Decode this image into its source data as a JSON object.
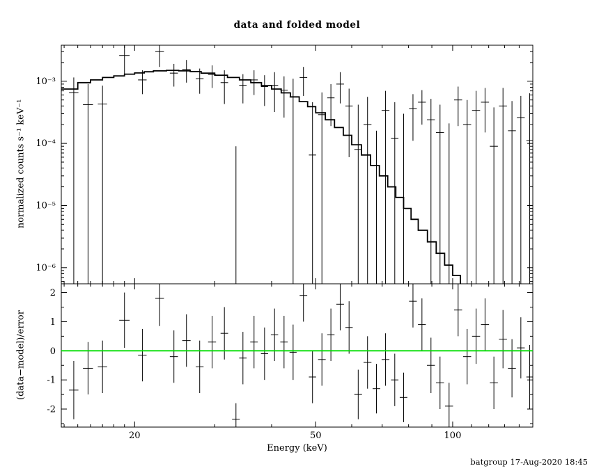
{
  "figure": {
    "title": "data and folded model",
    "xlabel": "Energy (keV)",
    "timestamp": "batgroup 17-Aug-2020 18:45",
    "background_color": "#ffffff",
    "frame_color": "#000000",
    "data_color": "#000000",
    "model_color": "#000000",
    "zero_line_color": "#00dd00"
  },
  "chart_data": [
    {
      "type": "scatter",
      "panel": "spectrum",
      "title": "data and folded model",
      "xlabel": "Energy (keV)",
      "ylabel": "normalized counts s⁻¹ keV⁻¹",
      "xscale": "log",
      "yscale": "log",
      "xlim": [
        13.8,
        150
      ],
      "ylim": [
        5.5e-07,
        0.0038
      ],
      "x_ticks": [
        20,
        50,
        100
      ],
      "x_tick_labels": [
        "20",
        "50",
        "100"
      ],
      "y_ticks": [
        0.001,
        0.0001,
        1e-05,
        1e-06
      ],
      "y_tick_labels": [
        "10⁻³",
        "10⁻⁴",
        "10⁻⁵",
        "10⁻⁶"
      ],
      "legend": "off",
      "grid": "off",
      "series_names": [
        "data (crosses with error bars)",
        "folded model (stepped line)"
      ],
      "points": [
        {
          "x": 14.7,
          "xw": 0.35,
          "y": 0.00065,
          "lo": 0,
          "hi": 0.00115
        },
        {
          "x": 15.8,
          "xw": 0.4,
          "y": 0.00042,
          "lo": 0,
          "hi": 0.0009
        },
        {
          "x": 17.0,
          "xw": 0.4,
          "y": 0.00043,
          "lo": 0,
          "hi": 0.00085
        },
        {
          "x": 19.0,
          "xw": 0.5,
          "y": 0.0026,
          "lo": 0.0012,
          "hi": 0.0044
        },
        {
          "x": 20.8,
          "xw": 0.45,
          "y": 0.00105,
          "lo": 0.00062,
          "hi": 0.0015
        },
        {
          "x": 22.7,
          "xw": 0.5,
          "y": 0.003,
          "lo": 0.0017,
          "hi": 0.0046
        },
        {
          "x": 24.4,
          "xw": 0.5,
          "y": 0.00135,
          "lo": 0.00082,
          "hi": 0.0019
        },
        {
          "x": 26.0,
          "xw": 0.55,
          "y": 0.00155,
          "lo": 0.00095,
          "hi": 0.0022
        },
        {
          "x": 27.8,
          "xw": 0.55,
          "y": 0.0011,
          "lo": 0.00063,
          "hi": 0.0016
        },
        {
          "x": 29.6,
          "xw": 0.6,
          "y": 0.00128,
          "lo": 0.00078,
          "hi": 0.0018
        },
        {
          "x": 31.5,
          "xw": 0.6,
          "y": 0.00095,
          "lo": 0.00043,
          "hi": 0.0015
        },
        {
          "x": 33.4,
          "xw": 0.65,
          "y": null,
          "lo": 0,
          "hi": 9e-05
        },
        {
          "x": 34.6,
          "xw": 0.65,
          "y": 0.00086,
          "lo": 0.00044,
          "hi": 0.0013
        },
        {
          "x": 36.6,
          "xw": 0.7,
          "y": 0.00105,
          "lo": 0.0006,
          "hi": 0.0015
        },
        {
          "x": 38.6,
          "xw": 0.7,
          "y": 0.00082,
          "lo": 0.0004,
          "hi": 0.00125
        },
        {
          "x": 40.6,
          "xw": 0.75,
          "y": 0.00086,
          "lo": 0.00032,
          "hi": 0.0014
        },
        {
          "x": 42.6,
          "xw": 0.8,
          "y": 0.00072,
          "lo": 0.00026,
          "hi": 0.0012
        },
        {
          "x": 44.6,
          "xw": 0.8,
          "y": 0.00056,
          "lo": 0,
          "hi": 0.0011
        },
        {
          "x": 47.0,
          "xw": 0.9,
          "y": 0.00115,
          "lo": 0.00058,
          "hi": 0.0017
        },
        {
          "x": 49.2,
          "xw": 0.9,
          "y": 6.5e-05,
          "lo": 0,
          "hi": 0.00046
        },
        {
          "x": 51.6,
          "xw": 1.0,
          "y": 0.00029,
          "lo": 0,
          "hi": 0.00066
        },
        {
          "x": 54.0,
          "xw": 1.0,
          "y": 0.00054,
          "lo": 0.00019,
          "hi": 0.0009
        },
        {
          "x": 56.6,
          "xw": 1.1,
          "y": 0.0009,
          "lo": 0.00044,
          "hi": 0.0014
        },
        {
          "x": 59.2,
          "xw": 1.1,
          "y": 0.0004,
          "lo": 6e-05,
          "hi": 0.00076
        },
        {
          "x": 62.0,
          "xw": 1.2,
          "y": 8e-05,
          "lo": 0,
          "hi": 0.00042
        },
        {
          "x": 65.0,
          "xw": 1.3,
          "y": 0.0002,
          "lo": 0,
          "hi": 0.00056
        },
        {
          "x": 68.0,
          "xw": 1.3,
          "y": null,
          "lo": 0,
          "hi": 0.00016
        },
        {
          "x": 71.2,
          "xw": 1.4,
          "y": 0.00034,
          "lo": 0,
          "hi": 0.0007
        },
        {
          "x": 74.6,
          "xw": 1.4,
          "y": 0.00012,
          "lo": 0,
          "hi": 0.00046
        },
        {
          "x": 78.0,
          "xw": 1.5,
          "y": null,
          "lo": 0,
          "hi": 0.0003
        },
        {
          "x": 81.8,
          "xw": 1.6,
          "y": 0.00036,
          "lo": 0.00011,
          "hi": 0.00062
        },
        {
          "x": 85.6,
          "xw": 1.7,
          "y": 0.00046,
          "lo": 0.0002,
          "hi": 0.00072
        },
        {
          "x": 89.6,
          "xw": 1.8,
          "y": 0.00024,
          "lo": 0,
          "hi": 0.00052
        },
        {
          "x": 93.8,
          "xw": 1.9,
          "y": 0.00015,
          "lo": 0,
          "hi": 0.00042
        },
        {
          "x": 98.2,
          "xw": 2.0,
          "y": null,
          "lo": 0,
          "hi": 0.00021
        },
        {
          "x": 102.8,
          "xw": 2.1,
          "y": 0.0005,
          "lo": 0.00019,
          "hi": 0.00082
        },
        {
          "x": 107.6,
          "xw": 2.2,
          "y": 0.0002,
          "lo": 0,
          "hi": 0.0005
        },
        {
          "x": 112.6,
          "xw": 2.3,
          "y": 0.00034,
          "lo": 0,
          "hi": 0.0007
        },
        {
          "x": 117.8,
          "xw": 2.4,
          "y": 0.00046,
          "lo": 0.00015,
          "hi": 0.00078
        },
        {
          "x": 123.2,
          "xw": 2.5,
          "y": 9e-05,
          "lo": 0,
          "hi": 0.00038
        },
        {
          "x": 129.0,
          "xw": 2.6,
          "y": 0.0004,
          "lo": 0,
          "hi": 0.00078
        },
        {
          "x": 135.0,
          "xw": 2.7,
          "y": 0.00016,
          "lo": 0,
          "hi": 0.00048
        },
        {
          "x": 141.2,
          "xw": 2.8,
          "y": 0.00026,
          "lo": 0,
          "hi": 0.00058
        },
        {
          "x": 147.6,
          "xw": 2.4,
          "y": 0.00011,
          "lo": 0,
          "hi": 0.00064
        }
      ],
      "model": {
        "style": "steps",
        "edges": [
          13.8,
          15,
          16,
          17,
          18,
          19,
          20,
          21,
          22,
          23.5,
          25,
          26.5,
          28,
          30,
          32,
          34,
          36,
          38,
          40,
          42,
          44,
          46,
          48,
          50,
          52.5,
          55,
          57.5,
          60,
          63,
          66,
          69,
          72,
          75,
          78,
          81,
          84,
          88,
          92,
          96,
          100,
          104
        ],
        "values": [
          0.00075,
          0.00095,
          0.00105,
          0.00115,
          0.00122,
          0.0013,
          0.00136,
          0.00142,
          0.00147,
          0.0015,
          0.00147,
          0.00143,
          0.00135,
          0.00125,
          0.00115,
          0.00105,
          0.00095,
          0.00085,
          0.00075,
          0.00065,
          0.00056,
          0.00047,
          0.00039,
          0.00031,
          0.00024,
          0.00018,
          0.000135,
          9.5e-05,
          6.5e-05,
          4.4e-05,
          3e-05,
          2e-05,
          1.35e-05,
          9e-06,
          6e-06,
          4e-06,
          2.6e-06,
          1.7e-06,
          1.1e-06,
          7.5e-07
        ]
      }
    },
    {
      "type": "scatter",
      "panel": "residuals",
      "ylabel": "(data−model)/error",
      "xscale": "log",
      "yscale": "linear",
      "xlim": [
        13.8,
        150
      ],
      "ylim": [
        -2.62,
        2.3
      ],
      "y_ticks": [
        2,
        1,
        0,
        -1,
        -2
      ],
      "y_tick_labels": [
        "2",
        "1",
        "0",
        "-1",
        "-2"
      ],
      "zero_line": 0,
      "zero_line_color": "#00dd00",
      "points": [
        {
          "x": 14.7,
          "xw": 0.35,
          "v": -1.35,
          "e": 1.0
        },
        {
          "x": 15.8,
          "xw": 0.4,
          "v": -0.6,
          "e": 0.9
        },
        {
          "x": 17.0,
          "xw": 0.4,
          "v": -0.55,
          "e": 0.9
        },
        {
          "x": 19.0,
          "xw": 0.5,
          "v": 1.05,
          "e": 0.95
        },
        {
          "x": 20.8,
          "xw": 0.45,
          "v": -0.15,
          "e": 0.9
        },
        {
          "x": 22.7,
          "xw": 0.5,
          "v": 1.8,
          "e": 0.95
        },
        {
          "x": 24.4,
          "xw": 0.5,
          "v": -0.2,
          "e": 0.9
        },
        {
          "x": 26.0,
          "xw": 0.55,
          "v": 0.35,
          "e": 0.9
        },
        {
          "x": 27.8,
          "xw": 0.55,
          "v": -0.55,
          "e": 0.9
        },
        {
          "x": 29.6,
          "xw": 0.6,
          "v": 0.3,
          "e": 0.9
        },
        {
          "x": 31.5,
          "xw": 0.6,
          "v": 0.6,
          "e": 0.9
        },
        {
          "x": 33.4,
          "xw": 0.65,
          "v": -2.35,
          "e": 0.55
        },
        {
          "x": 34.6,
          "xw": 0.65,
          "v": -0.25,
          "e": 0.9
        },
        {
          "x": 36.6,
          "xw": 0.7,
          "v": 0.3,
          "e": 0.9
        },
        {
          "x": 38.6,
          "xw": 0.7,
          "v": -0.1,
          "e": 0.9
        },
        {
          "x": 40.6,
          "xw": 0.75,
          "v": 0.55,
          "e": 0.9
        },
        {
          "x": 42.6,
          "xw": 0.8,
          "v": 0.3,
          "e": 0.9
        },
        {
          "x": 44.6,
          "xw": 0.8,
          "v": -0.05,
          "e": 0.95
        },
        {
          "x": 47.0,
          "xw": 0.9,
          "v": 1.9,
          "e": 0.9
        },
        {
          "x": 49.2,
          "xw": 0.9,
          "v": -0.9,
          "e": 0.9
        },
        {
          "x": 51.6,
          "xw": 1.0,
          "v": -0.3,
          "e": 0.9
        },
        {
          "x": 54.0,
          "xw": 1.0,
          "v": 0.55,
          "e": 0.9
        },
        {
          "x": 56.6,
          "xw": 1.1,
          "v": 1.6,
          "e": 0.9
        },
        {
          "x": 59.2,
          "xw": 1.1,
          "v": 0.8,
          "e": 0.9
        },
        {
          "x": 62.0,
          "xw": 1.2,
          "v": -1.5,
          "e": 0.85
        },
        {
          "x": 65.0,
          "xw": 1.3,
          "v": -0.4,
          "e": 0.9
        },
        {
          "x": 68.0,
          "xw": 1.3,
          "v": -1.3,
          "e": 0.85
        },
        {
          "x": 71.2,
          "xw": 1.4,
          "v": -0.3,
          "e": 0.9
        },
        {
          "x": 74.6,
          "xw": 1.4,
          "v": -1.0,
          "e": 0.9
        },
        {
          "x": 78.0,
          "xw": 1.5,
          "v": -1.6,
          "e": 0.85
        },
        {
          "x": 81.8,
          "xw": 1.6,
          "v": 1.7,
          "e": 0.9
        },
        {
          "x": 85.6,
          "xw": 1.7,
          "v": 0.9,
          "e": 0.9
        },
        {
          "x": 89.6,
          "xw": 1.8,
          "v": -0.5,
          "e": 0.95
        },
        {
          "x": 93.8,
          "xw": 1.9,
          "v": -1.1,
          "e": 0.9
        },
        {
          "x": 98.2,
          "xw": 2.0,
          "v": -1.9,
          "e": 0.8
        },
        {
          "x": 102.8,
          "xw": 2.1,
          "v": 1.4,
          "e": 0.9
        },
        {
          "x": 107.6,
          "xw": 2.2,
          "v": -0.2,
          "e": 0.95
        },
        {
          "x": 112.6,
          "xw": 2.3,
          "v": 0.5,
          "e": 0.95
        },
        {
          "x": 117.8,
          "xw": 2.4,
          "v": 0.9,
          "e": 0.9
        },
        {
          "x": 123.2,
          "xw": 2.5,
          "v": -1.1,
          "e": 0.9
        },
        {
          "x": 129.0,
          "xw": 2.6,
          "v": 0.4,
          "e": 1.0
        },
        {
          "x": 135.0,
          "xw": 2.7,
          "v": -0.6,
          "e": 1.0
        },
        {
          "x": 141.2,
          "xw": 2.8,
          "v": 0.1,
          "e": 1.05
        },
        {
          "x": 147.6,
          "xw": 2.4,
          "v": -0.9,
          "e": 1.1
        }
      ]
    }
  ]
}
